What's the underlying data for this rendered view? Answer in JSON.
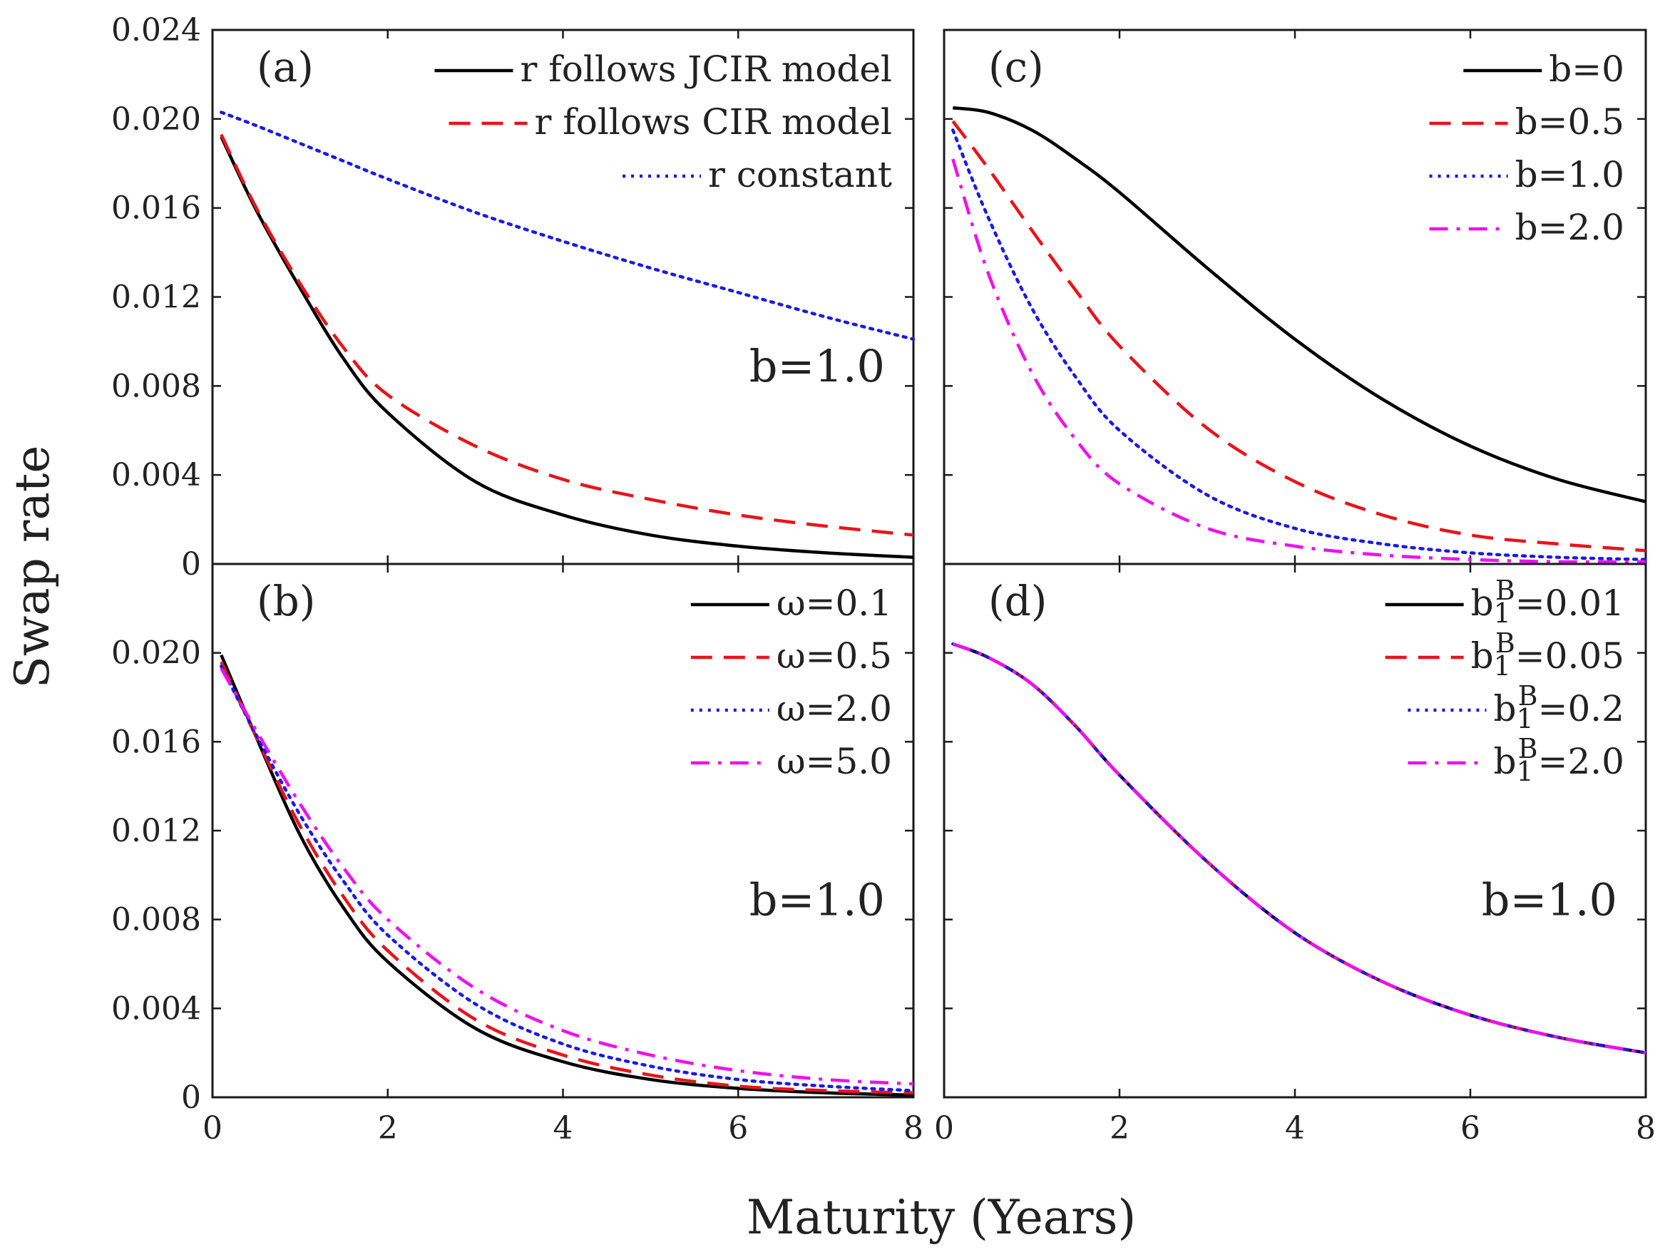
{
  "figure": {
    "ylabel": "Swap rate",
    "xlabel": "Maturity (Years)"
  },
  "chart_data": [
    {
      "id": "a",
      "type": "line",
      "panel_label": "(a)",
      "annotation": "b=1.0",
      "xlim": [
        0,
        8
      ],
      "ylim": [
        0,
        0.024
      ],
      "xticks": [
        "0",
        "2",
        "4",
        "6",
        "8"
      ],
      "yticks": [
        "0",
        "0.004",
        "0.008",
        "0.012",
        "0.016",
        "0.020",
        "0.024"
      ],
      "legend_position": "top-right",
      "x": [
        0.1,
        0.5,
        1,
        1.5,
        2,
        3,
        4,
        5,
        6,
        7,
        8
      ],
      "series": [
        {
          "name": "r follows JCIR model",
          "color": "#000000",
          "style": "solid",
          "values": [
            0.0192,
            0.0159,
            0.0124,
            0.0092,
            0.0068,
            0.0037,
            0.0022,
            0.0013,
            0.0008,
            0.0005,
            0.0003
          ]
        },
        {
          "name": "r follows CIR model",
          "color": "#e8141a",
          "style": "dashed",
          "values": [
            0.0193,
            0.016,
            0.0126,
            0.0097,
            0.0076,
            0.0053,
            0.0038,
            0.0029,
            0.0022,
            0.0017,
            0.0013
          ]
        },
        {
          "name": "r constant",
          "color": "#1a1ae6",
          "style": "dotted",
          "values": [
            0.0203,
            0.0197,
            0.0189,
            0.0181,
            0.0173,
            0.0158,
            0.0145,
            0.0133,
            0.0122,
            0.0111,
            0.0101
          ]
        }
      ]
    },
    {
      "id": "c",
      "type": "line",
      "panel_label": "(c)",
      "annotation": "",
      "xlim": [
        0,
        8
      ],
      "ylim": [
        0,
        0.024
      ],
      "xticks": [
        "0",
        "2",
        "4",
        "6",
        "8"
      ],
      "yticks": [],
      "legend_position": "top-right",
      "x": [
        0.1,
        0.5,
        1,
        1.5,
        2,
        3,
        4,
        5,
        6,
        7,
        8
      ],
      "series": [
        {
          "name": "b=0",
          "color": "#000000",
          "style": "solid",
          "values": [
            0.0205,
            0.0203,
            0.0195,
            0.0182,
            0.0167,
            0.0133,
            0.0101,
            0.0074,
            0.0053,
            0.0038,
            0.0028
          ]
        },
        {
          "name": "b=0.5",
          "color": "#e8141a",
          "style": "dashed",
          "values": [
            0.0199,
            0.0178,
            0.015,
            0.0123,
            0.0098,
            0.0061,
            0.0037,
            0.0022,
            0.0013,
            0.0009,
            0.0006
          ]
        },
        {
          "name": "b=1.0",
          "color": "#1a1ae6",
          "style": "dotted",
          "values": [
            0.0195,
            0.0156,
            0.0115,
            0.0084,
            0.006,
            0.0031,
            0.0016,
            0.0009,
            0.0005,
            0.0003,
            0.0002
          ]
        },
        {
          "name": "b=2.0",
          "color": "#ee11ee",
          "style": "dashdot",
          "values": [
            0.0182,
            0.0131,
            0.0086,
            0.0056,
            0.0036,
            0.0016,
            0.0008,
            0.0004,
            0.0002,
            0.0001,
            0.0001
          ]
        }
      ]
    },
    {
      "id": "b",
      "type": "line",
      "panel_label": "(b)",
      "annotation": "b=1.0",
      "xlim": [
        0,
        8
      ],
      "ylim": [
        0,
        0.024
      ],
      "xticks": [
        "0",
        "2",
        "4",
        "6",
        "8"
      ],
      "yticks": [
        "0",
        "0.004",
        "0.008",
        "0.012",
        "0.016",
        "0.020",
        ""
      ],
      "legend_position": "top-right",
      "x": [
        0.1,
        0.5,
        1,
        1.5,
        2,
        3,
        4,
        5,
        6,
        7,
        8
      ],
      "series": [
        {
          "name": "ω=0.1",
          "color": "#000000",
          "style": "solid",
          "values": [
            0.0199,
            0.0162,
            0.0118,
            0.0085,
            0.0061,
            0.0031,
            0.0016,
            0.0008,
            0.0004,
            0.0002,
            0.0001
          ]
        },
        {
          "name": "ω=0.5",
          "color": "#e8141a",
          "style": "dashed",
          "values": [
            0.0196,
            0.0162,
            0.0122,
            0.009,
            0.0066,
            0.0035,
            0.0019,
            0.001,
            0.0005,
            0.0003,
            0.0002
          ]
        },
        {
          "name": "ω=2.0",
          "color": "#1a1ae6",
          "style": "dotted",
          "values": [
            0.0194,
            0.0163,
            0.0127,
            0.0097,
            0.0073,
            0.0042,
            0.0024,
            0.0014,
            0.0008,
            0.0005,
            0.0003
          ]
        },
        {
          "name": "ω=5.0",
          "color": "#ee11ee",
          "style": "dashdot",
          "values": [
            0.0193,
            0.0165,
            0.0132,
            0.0103,
            0.008,
            0.0049,
            0.003,
            0.0019,
            0.0012,
            0.0008,
            0.0006
          ]
        }
      ]
    },
    {
      "id": "d",
      "type": "line",
      "panel_label": "(d)",
      "annotation": "b=1.0",
      "xlim": [
        0,
        8
      ],
      "ylim": [
        0,
        0.024
      ],
      "xticks": [
        "0",
        "2",
        "4",
        "6",
        "8"
      ],
      "yticks": [],
      "legend_position": "top-right",
      "x": [
        0.1,
        0.5,
        1,
        1.5,
        2,
        3,
        4,
        5,
        6,
        7,
        8
      ],
      "series": [
        {
          "name": "b₁ᴮ=0.01",
          "base": "b",
          "sub": "1",
          "sup": "B",
          "value": "=0.01",
          "color": "#000000",
          "style": "solid",
          "values": [
            0.0204,
            0.0198,
            0.0186,
            0.0167,
            0.0145,
            0.0106,
            0.0074,
            0.0052,
            0.0037,
            0.0027,
            0.002
          ]
        },
        {
          "name": "b₁ᴮ=0.05",
          "base": "b",
          "sub": "1",
          "sup": "B",
          "value": "=0.05",
          "color": "#e8141a",
          "style": "dashed",
          "values": [
            0.0204,
            0.0198,
            0.0186,
            0.0167,
            0.0145,
            0.0106,
            0.0074,
            0.0052,
            0.0037,
            0.0027,
            0.002
          ]
        },
        {
          "name": "b₁ᴮ=0.2",
          "base": "b",
          "sub": "1",
          "sup": "B",
          "value": "=0.2",
          "color": "#1a1ae6",
          "style": "dotted",
          "values": [
            0.0204,
            0.0198,
            0.0186,
            0.0167,
            0.0145,
            0.0106,
            0.0074,
            0.0052,
            0.0037,
            0.0027,
            0.002
          ]
        },
        {
          "name": "b₁ᴮ=2.0",
          "base": "b",
          "sub": "1",
          "sup": "B",
          "value": "=2.0",
          "color": "#ee11ee",
          "style": "dashdot",
          "values": [
            0.0204,
            0.0198,
            0.0186,
            0.0167,
            0.0145,
            0.0106,
            0.0074,
            0.0052,
            0.0037,
            0.0027,
            0.002
          ]
        }
      ]
    }
  ]
}
